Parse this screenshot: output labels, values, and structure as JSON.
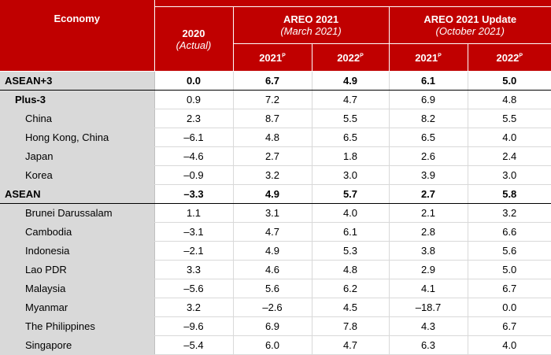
{
  "header": {
    "economy": "Economy",
    "year_2020": "2020",
    "actual": "(Actual)",
    "areo_2021": "AREO 2021",
    "areo_2021_date": "(March 2021)",
    "areo_update": "AREO 2021 Update",
    "areo_update_date": "(October 2021)",
    "col_2021": "2021",
    "col_2022": "2022",
    "proj_mark": "P"
  },
  "rows": [
    {
      "economy": "ASEAN+3",
      "y2020": "0.0",
      "mar2021": "6.7",
      "mar2022": "4.9",
      "oct2021": "6.1",
      "oct2022": "5.0"
    },
    {
      "economy": "Plus-3",
      "y2020": "0.9",
      "mar2021": "7.2",
      "mar2022": "4.7",
      "oct2021": "6.9",
      "oct2022": "4.8"
    },
    {
      "economy": "China",
      "y2020": "2.3",
      "mar2021": "8.7",
      "mar2022": "5.5",
      "oct2021": "8.2",
      "oct2022": "5.5"
    },
    {
      "economy": "Hong Kong, China",
      "y2020": "–6.1",
      "mar2021": "4.8",
      "mar2022": "6.5",
      "oct2021": "6.5",
      "oct2022": "4.0"
    },
    {
      "economy": "Japan",
      "y2020": "–4.6",
      "mar2021": "2.7",
      "mar2022": "1.8",
      "oct2021": "2.6",
      "oct2022": "2.4"
    },
    {
      "economy": "Korea",
      "y2020": "–0.9",
      "mar2021": "3.2",
      "mar2022": "3.0",
      "oct2021": "3.9",
      "oct2022": "3.0"
    },
    {
      "economy": "ASEAN",
      "y2020": "–3.3",
      "mar2021": "4.9",
      "mar2022": "5.7",
      "oct2021": "2.7",
      "oct2022": "5.8"
    },
    {
      "economy": "Brunei Darussalam",
      "y2020": "1.1",
      "mar2021": "3.1",
      "mar2022": "4.0",
      "oct2021": "2.1",
      "oct2022": "3.2"
    },
    {
      "economy": "Cambodia",
      "y2020": "–3.1",
      "mar2021": "4.7",
      "mar2022": "6.1",
      "oct2021": "2.8",
      "oct2022": "6.6"
    },
    {
      "economy": "Indonesia",
      "y2020": "–2.1",
      "mar2021": "4.9",
      "mar2022": "5.3",
      "oct2021": "3.8",
      "oct2022": "5.6"
    },
    {
      "economy": "Lao PDR",
      "y2020": "3.3",
      "mar2021": "4.6",
      "mar2022": "4.8",
      "oct2021": "2.9",
      "oct2022": "5.0"
    },
    {
      "economy": "Malaysia",
      "y2020": "–5.6",
      "mar2021": "5.6",
      "mar2022": "6.2",
      "oct2021": "4.1",
      "oct2022": "6.7"
    },
    {
      "economy": "Myanmar",
      "y2020": "3.2",
      "mar2021": "–2.6",
      "mar2022": "4.5",
      "oct2021": "–18.7",
      "oct2022": "0.0"
    },
    {
      "economy": "The Philippines",
      "y2020": "–9.6",
      "mar2021": "6.9",
      "mar2022": "7.8",
      "oct2021": "4.3",
      "oct2022": "6.7"
    },
    {
      "economy": "Singapore",
      "y2020": "–5.4",
      "mar2021": "6.0",
      "mar2022": "4.7",
      "oct2021": "6.3",
      "oct2022": "4.0"
    }
  ]
}
